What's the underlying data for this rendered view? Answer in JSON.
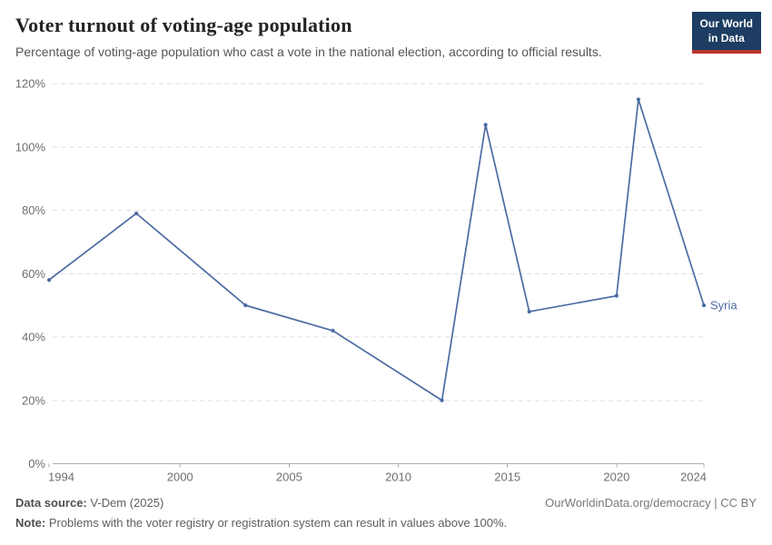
{
  "header": {
    "title": "Voter turnout of voting-age population",
    "subtitle": "Percentage of voting-age population who cast a vote in the national election, according to official results.",
    "logo": {
      "line1": "Our World",
      "line2": "in Data",
      "bg_color": "#1d3d63",
      "accent_color": "#b8352c"
    }
  },
  "chart_data": {
    "type": "line",
    "title": "Voter turnout of voting-age population",
    "series": [
      {
        "name": "Syria",
        "color": "#4c6ba3",
        "x": [
          1994,
          1998,
          2003,
          2007,
          2012,
          2014,
          2016,
          2020,
          2021,
          2024
        ],
        "values": [
          58,
          79,
          50,
          42,
          20,
          107,
          48,
          53,
          115,
          50
        ]
      }
    ],
    "xlim": [
      1994,
      2024
    ],
    "ylim": [
      0,
      120
    ],
    "x_ticks": [
      1994,
      2000,
      2005,
      2010,
      2015,
      2020,
      2024
    ],
    "y_ticks": [
      0,
      20,
      40,
      60,
      80,
      100,
      120
    ],
    "y_suffix": "%",
    "grid": "horizontal-dashed",
    "legend_position": "end-of-line-label"
  },
  "footer": {
    "datasource_label": "Data source:",
    "datasource_value": " V-Dem (2025)",
    "link": "OurWorldinData.org/democracy | CC BY",
    "note_label": "Note:",
    "note_value": " Problems with the voter registry or registration system can result in values above 100%."
  }
}
